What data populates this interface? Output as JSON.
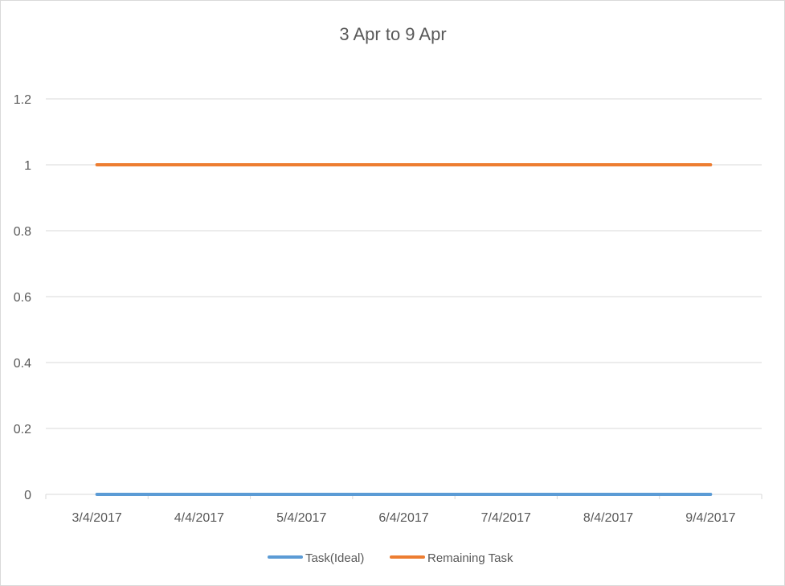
{
  "chart_data": {
    "type": "line",
    "title": "3 Apr to 9 Apr",
    "categories": [
      "3/4/2017",
      "4/4/2017",
      "5/4/2017",
      "6/4/2017",
      "7/4/2017",
      "8/4/2017",
      "9/4/2017"
    ],
    "series": [
      {
        "name": "Task(Ideal)",
        "color": "#5b9bd5",
        "values": [
          0,
          0,
          0,
          0,
          0,
          0,
          0
        ]
      },
      {
        "name": "Remaining Task",
        "color": "#ed7d31",
        "values": [
          1,
          1,
          1,
          1,
          1,
          1,
          1
        ]
      }
    ],
    "ylim": [
      0,
      1.2
    ],
    "yticks": [
      "0",
      "0.2",
      "0.4",
      "0.6",
      "0.8",
      "1",
      "1.2"
    ],
    "grid": true,
    "legend": "bottom"
  }
}
